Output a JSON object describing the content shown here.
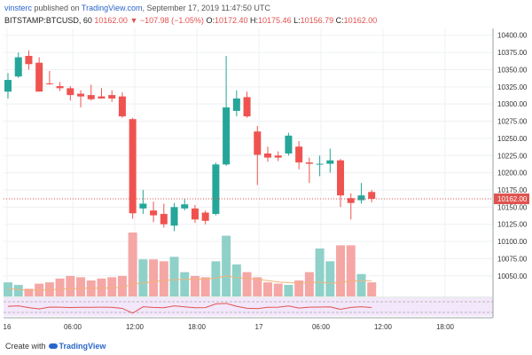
{
  "header": {
    "username": "vinsterc",
    "published_text": "published on",
    "platform": "TradingView.com",
    "date_text": ", September 17, 2019 11:47:50 UTC",
    "symbol": "BITSTAMP:BTCUSD, 60",
    "last_price": "10162.00",
    "change": "−107.98 (−1.05%)",
    "o_label": "O:",
    "o_value": "10172.40",
    "h_label": "H:",
    "h_value": "10175.46",
    "l_label": "L:",
    "l_value": "10156.79",
    "c_label": "C:",
    "c_value": "10162.00"
  },
  "footer": {
    "made_with": "Create with",
    "brand": "TradingView"
  },
  "colors": {
    "up": "#26a69a",
    "down": "#ef5350",
    "up_volume": "#8fd1c8",
    "down_volume": "#f5a7a5",
    "price_line": "#e0534f",
    "indicator_bg": "#f3e7fb"
  },
  "chart_data": {
    "type": "candlestick",
    "ylim": [
      10020,
      10410
    ],
    "y_ticks": [
      "10400.00",
      "10375.00",
      "10350.00",
      "10325.00",
      "10300.00",
      "10275.00",
      "10250.00",
      "10225.00",
      "10200.00",
      "10175.00",
      "10150.00",
      "10125.00",
      "10100.00",
      "10075.00",
      "10050.00"
    ],
    "x_ticks": [
      "16",
      "06:00",
      "12:00",
      "18:00",
      "17",
      "06:00",
      "12:00",
      "18:00"
    ],
    "last_price_label": "10162.00",
    "grid": true,
    "candles": [
      {
        "o": 10318,
        "h": 10345,
        "l": 10308,
        "c": 10335
      },
      {
        "o": 10340,
        "h": 10375,
        "l": 10338,
        "c": 10368
      },
      {
        "o": 10370,
        "h": 10378,
        "l": 10350,
        "c": 10358
      },
      {
        "o": 10360,
        "h": 10368,
        "l": 10318,
        "c": 10318
      },
      {
        "o": 10330,
        "h": 10348,
        "l": 10328,
        "c": 10329
      },
      {
        "o": 10326,
        "h": 10332,
        "l": 10319,
        "c": 10323
      },
      {
        "o": 10323,
        "h": 10326,
        "l": 10305,
        "c": 10313
      },
      {
        "o": 10315,
        "h": 10320,
        "l": 10295,
        "c": 10311
      },
      {
        "o": 10313,
        "h": 10328,
        "l": 10305,
        "c": 10307
      },
      {
        "o": 10311,
        "h": 10323,
        "l": 10308,
        "c": 10308
      },
      {
        "o": 10313,
        "h": 10320,
        "l": 10303,
        "c": 10308
      },
      {
        "o": 10311,
        "h": 10317,
        "l": 10280,
        "c": 10282
      },
      {
        "o": 10278,
        "h": 10280,
        "l": 10133,
        "c": 10141
      },
      {
        "o": 10148,
        "h": 10175,
        "l": 10140,
        "c": 10155
      },
      {
        "o": 10145,
        "h": 10158,
        "l": 10128,
        "c": 10138
      },
      {
        "o": 10140,
        "h": 10155,
        "l": 10120,
        "c": 10125
      },
      {
        "o": 10123,
        "h": 10156,
        "l": 10115,
        "c": 10150
      },
      {
        "o": 10148,
        "h": 10162,
        "l": 10145,
        "c": 10154
      },
      {
        "o": 10148,
        "h": 10153,
        "l": 10127,
        "c": 10132
      },
      {
        "o": 10142,
        "h": 10145,
        "l": 10125,
        "c": 10130
      },
      {
        "o": 10140,
        "h": 10215,
        "l": 10138,
        "c": 10212
      },
      {
        "o": 10212,
        "h": 10370,
        "l": 10210,
        "c": 10295
      },
      {
        "o": 10290,
        "h": 10320,
        "l": 10282,
        "c": 10308
      },
      {
        "o": 10310,
        "h": 10318,
        "l": 10280,
        "c": 10282
      },
      {
        "o": 10260,
        "h": 10268,
        "l": 10182,
        "c": 10226
      },
      {
        "o": 10228,
        "h": 10238,
        "l": 10216,
        "c": 10222
      },
      {
        "o": 10225,
        "h": 10231,
        "l": 10217,
        "c": 10222
      },
      {
        "o": 10228,
        "h": 10258,
        "l": 10225,
        "c": 10254
      },
      {
        "o": 10238,
        "h": 10246,
        "l": 10205,
        "c": 10215
      },
      {
        "o": 10215,
        "h": 10222,
        "l": 10185,
        "c": 10213
      },
      {
        "o": 10212,
        "h": 10225,
        "l": 10195,
        "c": 10213
      },
      {
        "o": 10213,
        "h": 10235,
        "l": 10200,
        "c": 10218
      },
      {
        "o": 10218,
        "h": 10220,
        "l": 10150,
        "c": 10167
      },
      {
        "o": 10163,
        "h": 10170,
        "l": 10132,
        "c": 10156
      },
      {
        "o": 10160,
        "h": 10185,
        "l": 10155,
        "c": 10167
      },
      {
        "o": 10172,
        "h": 10175,
        "l": 10157,
        "c": 10162
      }
    ],
    "volume_relative": [
      0.22,
      0.18,
      0.12,
      0.2,
      0.22,
      0.28,
      0.32,
      0.3,
      0.25,
      0.28,
      0.3,
      0.32,
      1.0,
      0.58,
      0.58,
      0.55,
      0.62,
      0.38,
      0.32,
      0.3,
      0.55,
      0.95,
      0.5,
      0.38,
      0.3,
      0.22,
      0.2,
      0.18,
      0.25,
      0.38,
      0.75,
      0.55,
      0.8,
      0.8,
      0.35,
      0.22
    ]
  }
}
